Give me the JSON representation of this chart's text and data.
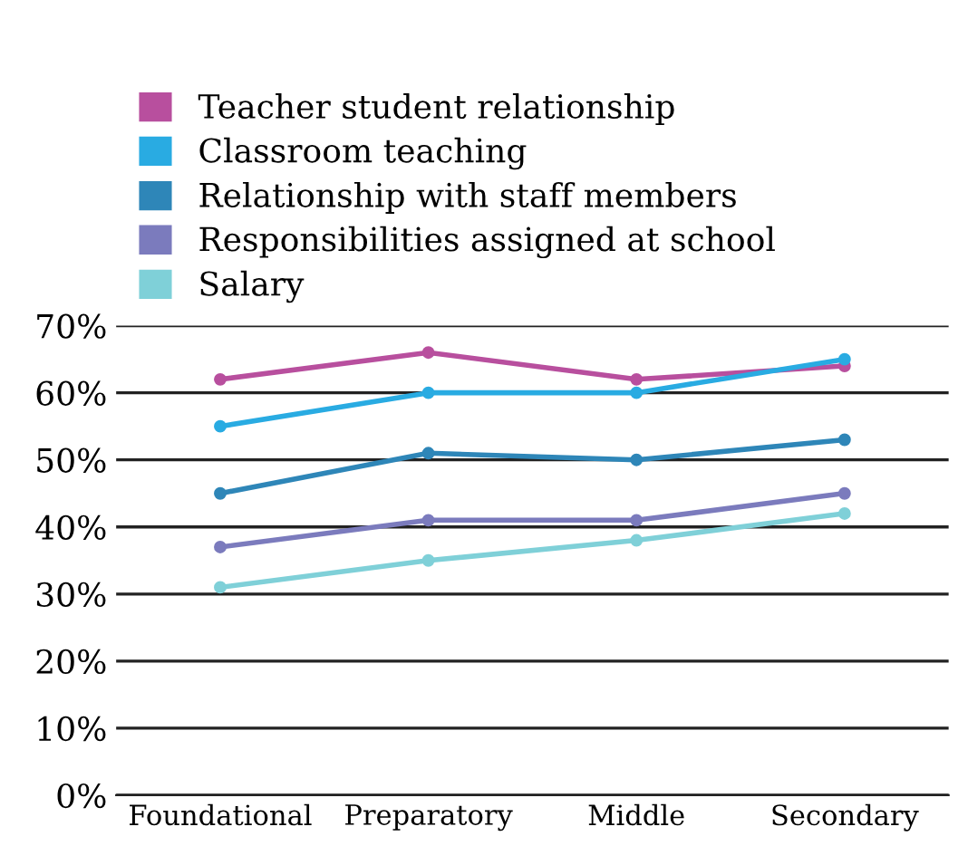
{
  "chart_data": {
    "type": "line",
    "categories": [
      "Foundational",
      "Preparatory",
      "Middle",
      "Secondary"
    ],
    "series": [
      {
        "name": "Teacher student relationship",
        "color": "#b84f9e",
        "values": [
          62,
          66,
          62,
          64
        ]
      },
      {
        "name": "Classroom teaching",
        "color": "#29abe2",
        "values": [
          55,
          60,
          60,
          65
        ]
      },
      {
        "name": "Relationship with staff members",
        "color": "#2e86b8",
        "values": [
          45,
          51,
          50,
          53
        ]
      },
      {
        "name": "Responsibilities assigned at school",
        "color": "#7b7bbd",
        "values": [
          37,
          41,
          41,
          45
        ]
      },
      {
        "name": "Salary",
        "color": "#7fd0d8",
        "values": [
          31,
          35,
          38,
          42
        ]
      }
    ],
    "ylim": [
      0,
      70
    ],
    "yticks": [
      {
        "value": 0,
        "label": "0%"
      },
      {
        "value": 10,
        "label": "10%"
      },
      {
        "value": 20,
        "label": "20%"
      },
      {
        "value": 30,
        "label": "30%"
      },
      {
        "value": 40,
        "label": "40%"
      },
      {
        "value": 50,
        "label": "50%"
      },
      {
        "value": 60,
        "label": "60%"
      },
      {
        "value": 70,
        "label": "70%"
      }
    ],
    "grid": "y",
    "legend": "top left",
    "marker": "circle",
    "line_style": "solid"
  }
}
